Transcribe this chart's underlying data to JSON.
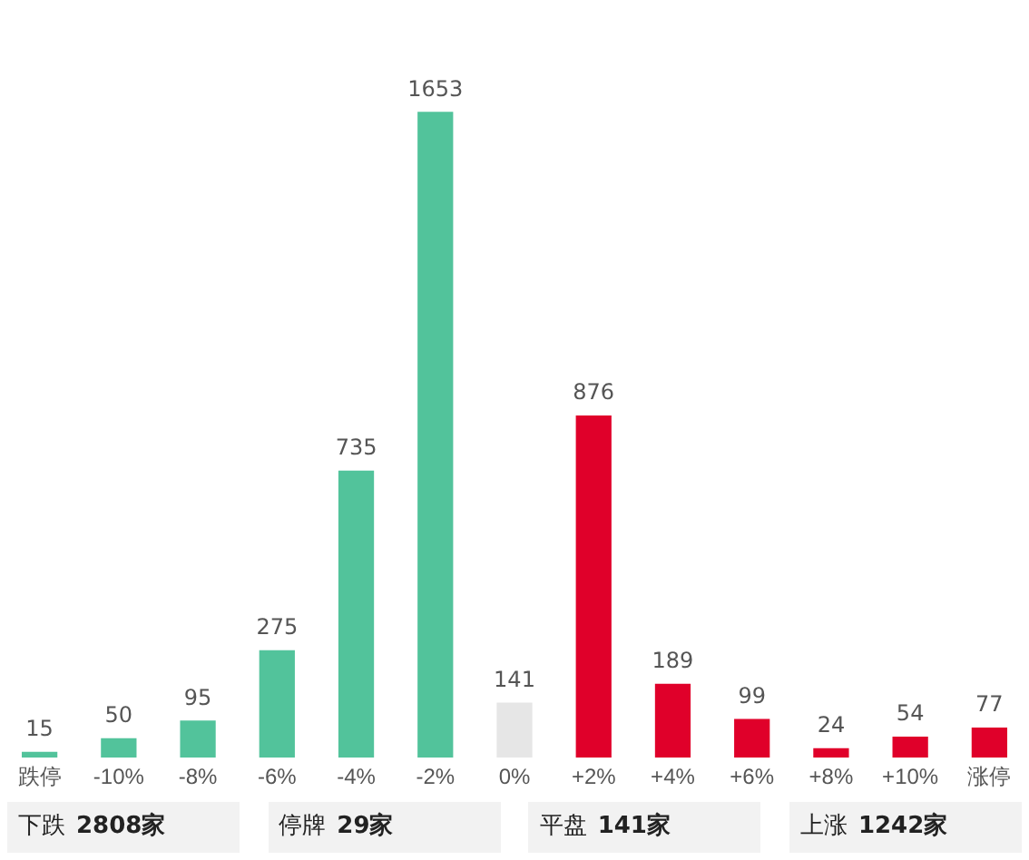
{
  "chart_data": {
    "type": "bar",
    "categories": [
      "跌停",
      "-10%",
      "-8%",
      "-6%",
      "-4%",
      "-2%",
      "0%",
      "+2%",
      "+4%",
      "+6%",
      "+8%",
      "+10%",
      "涨停"
    ],
    "values": [
      15,
      50,
      95,
      275,
      735,
      1653,
      141,
      876,
      189,
      99,
      24,
      54,
      77
    ],
    "colors": [
      "#52c39b",
      "#52c39b",
      "#52c39b",
      "#52c39b",
      "#52c39b",
      "#52c39b",
      "#e6e6e6",
      "#e0002a",
      "#e0002a",
      "#e0002a",
      "#e0002a",
      "#e0002a",
      "#e0002a"
    ],
    "data_labels": true,
    "grid": false,
    "legend": false,
    "tick_labels": "x",
    "annotations": [
      "下跌 2808家",
      "停牌 29家",
      "平盘 141家",
      "上涨 1242家"
    ]
  }
}
